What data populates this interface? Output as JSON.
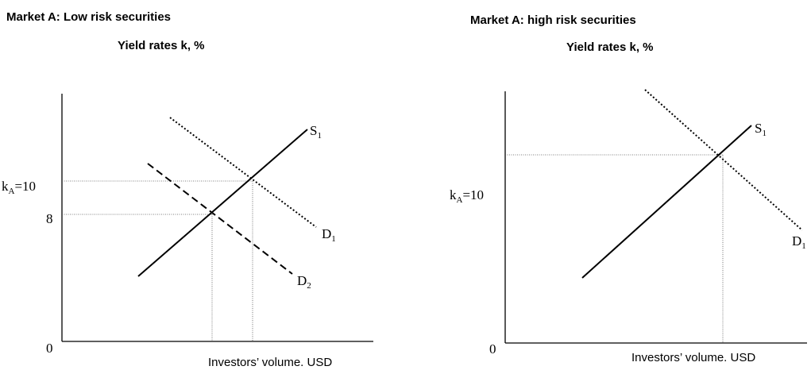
{
  "panels": [
    {
      "title": "Market A: Low risk securities",
      "y_axis_label": "Yield rates k,  %",
      "x_axis_label": "Investors’ volume. USD",
      "origin": "0",
      "y_labels": [
        {
          "main": "k",
          "sub": "A",
          "rest": "=10"
        },
        {
          "main": "8"
        }
      ],
      "curves": [
        {
          "main": "S",
          "sub": "1"
        },
        {
          "main": "D",
          "sub": "1"
        },
        {
          "main": "D",
          "sub": "2"
        }
      ]
    },
    {
      "title": "Market A: high risk securities",
      "y_axis_label": "Yield rates k, %",
      "x_axis_label": "Investors’ volume. USD",
      "origin": "0",
      "y_labels": [
        {
          "main": "k",
          "sub": "A",
          "rest": "=10"
        }
      ],
      "curves": [
        {
          "main": "S",
          "sub": "1"
        },
        {
          "main": "D",
          "sub": "1"
        }
      ]
    }
  ]
}
